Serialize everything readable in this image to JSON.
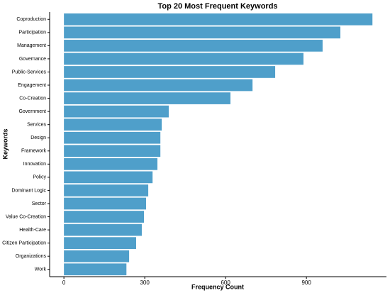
{
  "chart_data": {
    "type": "hbar",
    "title": "Top 20 Most Frequent Keywords",
    "x_label": "Frequency Count",
    "y_label": "Keywords",
    "categories": [
      "Coproduction",
      "Participation",
      "Management",
      "Governance",
      "Public-Services",
      "Engagement",
      "Co-Creation",
      "Government",
      "Services",
      "Design",
      "Framework",
      "Innovation",
      "Policy",
      "Dominant Logic",
      "Sector",
      "Value Co-Creation",
      "Health-Care",
      "Citizen Participation",
      "Organizations",
      "Work"
    ],
    "values": [
      1145,
      1026,
      960,
      889,
      784,
      700,
      618,
      389,
      363,
      358,
      358,
      347,
      329,
      313,
      305,
      297,
      289,
      268,
      242,
      232
    ],
    "color": "#4f9fca",
    "xlim": [
      -53,
      1197
    ],
    "xticks": [
      0,
      300,
      600,
      900
    ]
  }
}
